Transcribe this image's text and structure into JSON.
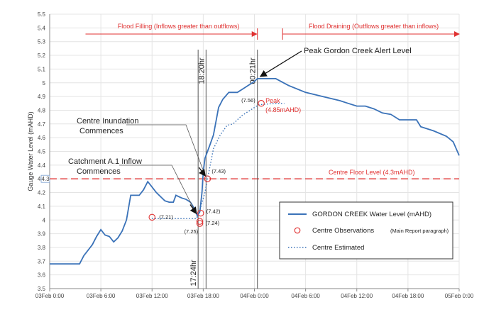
{
  "chart_data": {
    "type": "line",
    "ylabel": "Gauge Water Level (mAHD)",
    "xlabel": "",
    "ylim": [
      3.5,
      5.5
    ],
    "y_ticks": [
      "3.5",
      "3.6",
      "3.7",
      "3.8",
      "3.9",
      "4",
      "4.1",
      "4.2",
      "4.3",
      "4.4",
      "4.5",
      "4.6",
      "4.7",
      "4.8",
      "4.9",
      "5",
      "5.1",
      "5.2",
      "5.3",
      "5.4",
      "5.5"
    ],
    "x_range_hours": [
      0,
      48
    ],
    "x_ticks": [
      {
        "h": 0,
        "label": "03Feb 0:00"
      },
      {
        "h": 6,
        "label": "03Feb 6:00"
      },
      {
        "h": 12,
        "label": "03Feb 12:00"
      },
      {
        "h": 18,
        "label": "03Feb 18:00"
      },
      {
        "h": 24,
        "label": "04Feb 0:00"
      },
      {
        "h": 30,
        "label": "04Feb 6:00"
      },
      {
        "h": 36,
        "label": "04Feb 12:00"
      },
      {
        "h": 42,
        "label": "04Feb 18:00"
      },
      {
        "h": 48,
        "label": "05Feb 0:00"
      }
    ],
    "y_left_marker": "4.3",
    "grid": true,
    "series": [
      {
        "name": "GORDON CREEK Water Level (mAHD)",
        "style": "solid",
        "color": "#3a72b8",
        "points": [
          [
            0,
            3.68
          ],
          [
            3.5,
            3.68
          ],
          [
            4,
            3.74
          ],
          [
            5,
            3.82
          ],
          [
            5.5,
            3.88
          ],
          [
            6,
            3.93
          ],
          [
            6.5,
            3.89
          ],
          [
            7,
            3.88
          ],
          [
            7.5,
            3.84
          ],
          [
            8,
            3.87
          ],
          [
            8.5,
            3.92
          ],
          [
            9,
            4.0
          ],
          [
            9.5,
            4.18
          ],
          [
            10.5,
            4.18
          ],
          [
            11,
            4.22
          ],
          [
            11.5,
            4.28
          ],
          [
            12,
            4.24
          ],
          [
            12.5,
            4.2
          ],
          [
            13,
            4.17
          ],
          [
            13.5,
            4.14
          ],
          [
            14,
            4.13
          ],
          [
            14.5,
            4.13
          ],
          [
            14.8,
            4.18
          ],
          [
            15.5,
            4.16
          ],
          [
            16,
            4.15
          ],
          [
            16.5,
            4.13
          ],
          [
            17,
            4.08
          ],
          [
            17.3,
            4.03
          ],
          [
            17.6,
            4.06
          ],
          [
            17.85,
            4.2
          ],
          [
            18,
            4.35
          ],
          [
            18.2,
            4.45
          ],
          [
            18.5,
            4.5
          ],
          [
            18.8,
            4.55
          ],
          [
            19.2,
            4.62
          ],
          [
            19.5,
            4.72
          ],
          [
            19.8,
            4.82
          ],
          [
            20.3,
            4.88
          ],
          [
            21,
            4.93
          ],
          [
            22,
            4.93
          ],
          [
            23,
            4.97
          ],
          [
            24,
            5.01
          ],
          [
            24.35,
            5.03
          ],
          [
            26.5,
            5.03
          ],
          [
            28,
            4.98
          ],
          [
            30,
            4.93
          ],
          [
            32,
            4.9
          ],
          [
            34,
            4.87
          ],
          [
            35,
            4.85
          ],
          [
            36,
            4.83
          ],
          [
            37,
            4.83
          ],
          [
            38,
            4.81
          ],
          [
            39,
            4.78
          ],
          [
            40,
            4.77
          ],
          [
            41,
            4.73
          ],
          [
            42,
            4.73
          ],
          [
            43,
            4.73
          ],
          [
            43.5,
            4.68
          ],
          [
            45,
            4.65
          ],
          [
            46.5,
            4.61
          ],
          [
            47.3,
            4.57
          ],
          [
            48,
            4.47
          ]
        ]
      },
      {
        "name": "Centre Estimated",
        "style": "dotted",
        "color": "#3a72b8",
        "points": [
          [
            12,
            4.01
          ],
          [
            17.2,
            4.01
          ],
          [
            17.5,
            4.05
          ],
          [
            18.2,
            4.2
          ],
          [
            18.5,
            4.3
          ],
          [
            19.2,
            4.52
          ],
          [
            20,
            4.62
          ],
          [
            20.8,
            4.69
          ],
          [
            21.5,
            4.7
          ],
          [
            22.5,
            4.76
          ],
          [
            23.5,
            4.8
          ],
          [
            24.5,
            4.84
          ],
          [
            26.5,
            4.85
          ],
          [
            27.5,
            4.85
          ]
        ]
      }
    ],
    "observations": {
      "name": "Centre Observations",
      "legend_note": "(Main Report paragraph)",
      "color": "#e03030",
      "points": [
        {
          "h": 12,
          "v": 4.02,
          "label": "(7.21)"
        },
        {
          "h": 17.7,
          "v": 4.05,
          "label": "(7.42)"
        },
        {
          "h": 17.6,
          "v": 3.99,
          "label": "(7.24)"
        },
        {
          "h": 17.6,
          "v": 3.975,
          "label": "(7.25)"
        },
        {
          "h": 18.5,
          "v": 4.3,
          "label": "(7.43)"
        },
        {
          "h": 24.8,
          "v": 4.85,
          "label": "(7.56)"
        }
      ]
    },
    "reference_line": {
      "value": 4.3,
      "label": "Centre Floor Level (4.3mAHD)",
      "color": "#e03030"
    },
    "vertical_lines": [
      {
        "h": 17.4,
        "label": "17:24hr"
      },
      {
        "h": 18.33,
        "label": "18:20hr"
      },
      {
        "h": 24.35,
        "label": "00:21hr"
      }
    ],
    "flood_phases": {
      "filling": "Flood Filling (Inflows greater than outflows)",
      "draining": "Flood Draining (Outflows greater than inflows)"
    },
    "annotations": {
      "peak_alert": "Peak Gordon Creek Alert Level",
      "peak": "Peak",
      "peak_value": "(4.85mAHD)",
      "inundation_line1": "Centre Inundation",
      "inundation_line2": "Commences",
      "catchment_line1": "Catchment A.1 Inflow",
      "catchment_line2": "Commences"
    },
    "legend": {
      "position": "bottom-right",
      "items": [
        {
          "label": "GORDON CREEK Water Level (mAHD)",
          "kind": "line"
        },
        {
          "label": "Centre Observations",
          "note": "(Main Report paragraph)",
          "kind": "marker"
        },
        {
          "label": "Centre Estimated",
          "kind": "dotted"
        }
      ]
    }
  }
}
